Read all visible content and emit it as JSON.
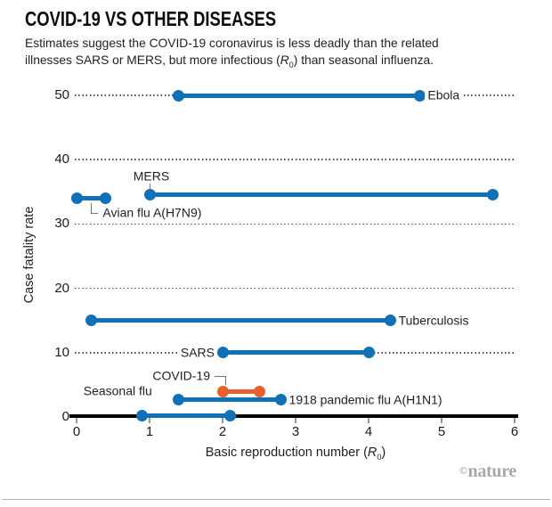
{
  "header": {
    "title": "COVID-19 VS OTHER DISEASES",
    "subtitle_line1": "Estimates suggest the COVID-19 coronavirus is less deadly than the related",
    "subtitle_line2_pre": "illnesses SARS or MERS, but more infectious (",
    "r_symbol": "R",
    "r_subscript": "0",
    "subtitle_line2_post": ") than seasonal influenza."
  },
  "chart_data": {
    "type": "range-dot-plot",
    "title": "COVID-19 VS OTHER DISEASES",
    "xlabel_full": "Basic reproduction number (R0)",
    "xlabel_pre": "Basic reproduction number (",
    "xlabel_post": ")",
    "ylabel": "Case fatality rate",
    "xlim": [
      0,
      6
    ],
    "ylim": [
      0,
      50
    ],
    "xticks": [
      0,
      1,
      2,
      3,
      4,
      5,
      6
    ],
    "yticks": [
      0,
      10,
      20,
      30,
      40,
      50
    ],
    "grid": "dotted horizontal gridlines at y ticks, legend none",
    "series": [
      {
        "name": "Ebola",
        "r0_range": [
          1.4,
          4.7
        ],
        "case_fatality_rate": 50,
        "color": "#1071b8",
        "label_position": "right"
      },
      {
        "name": "MERS",
        "r0_range": [
          1.0,
          5.7
        ],
        "case_fatality_rate": 34.5,
        "color": "#1071b8",
        "label_position": "above-start"
      },
      {
        "name": "Avian flu A(H7N9)",
        "r0_range": [
          0.0,
          0.4
        ],
        "case_fatality_rate": 34,
        "color": "#1071b8",
        "label_position": "below-elbow"
      },
      {
        "name": "Tuberculosis",
        "r0_range": [
          0.2,
          4.3
        ],
        "case_fatality_rate": 15,
        "color": "#1071b8",
        "label_position": "right"
      },
      {
        "name": "SARS",
        "r0_range": [
          2.0,
          4.0
        ],
        "case_fatality_rate": 10,
        "color": "#1071b8",
        "label_position": "left"
      },
      {
        "name": "COVID-19",
        "r0_range": [
          2.0,
          2.5
        ],
        "case_fatality_rate": 3.9,
        "color": "#e8612c",
        "label_position": "above-elbow"
      },
      {
        "name": "1918 pandemic flu A(H1N1)",
        "r0_range": [
          1.4,
          2.8
        ],
        "case_fatality_rate": 2.7,
        "color": "#1071b8",
        "label_position": "right"
      },
      {
        "name": "Seasonal flu",
        "r0_range": [
          0.9,
          2.1
        ],
        "case_fatality_rate": 0.2,
        "color": "#1071b8",
        "label_position": "above-start-left"
      }
    ]
  },
  "footer": {
    "copyright_symbol": "©",
    "brand": "nature"
  },
  "colors": {
    "bar_blue": "#1071b8",
    "bar_orange": "#e8612c",
    "axis_black": "#000000",
    "grid_dot_gray": "#4a4a4a",
    "text_dark": "#1f1f1f",
    "tick_gray": "#989898",
    "credit_gray": "#a8a8a8"
  }
}
